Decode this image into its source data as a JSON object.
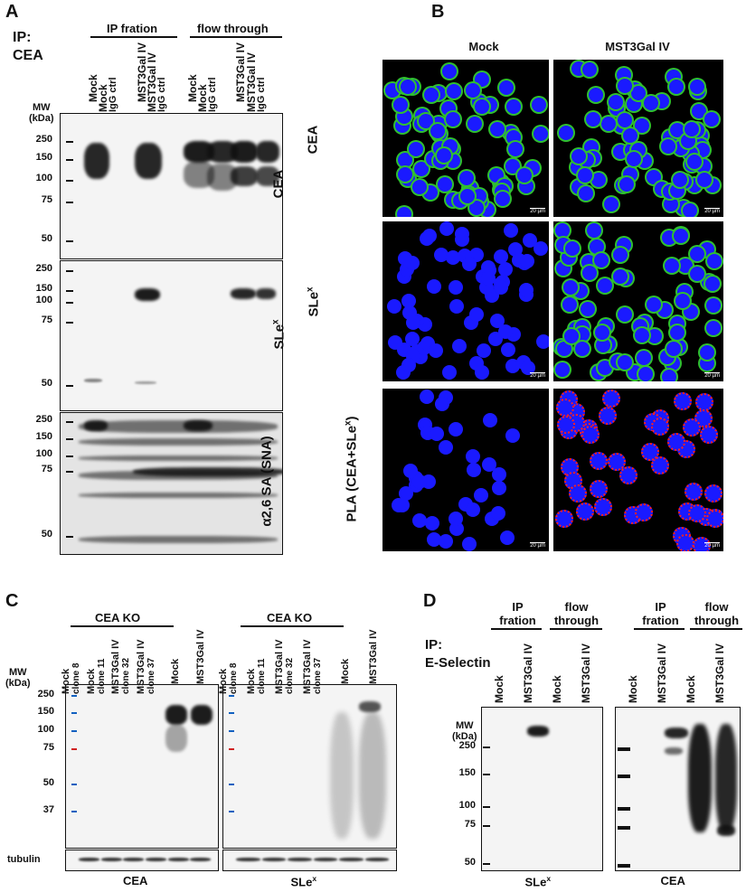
{
  "panels": {
    "A": {
      "label": "A",
      "ip_label": "IP:",
      "ip_target": "CEA",
      "group1": "IP fration",
      "group2": "flow through",
      "lanes": [
        [
          "Mock",
          ""
        ],
        [
          "Mock",
          "IgG ctrl"
        ],
        [
          "MST3Gal IV",
          ""
        ],
        [
          "MST3Gal IV",
          "IgG ctrl"
        ],
        [
          "Mock",
          ""
        ],
        [
          "Mock",
          "IgG ctrl"
        ],
        [
          "MST3Gal IV",
          ""
        ],
        [
          "MST3Gal IV",
          "IgG ctrl"
        ]
      ],
      "mw_title": "MW",
      "mw_unit": "(kDa)",
      "blots": [
        {
          "name": "CEA",
          "mw": [
            "250",
            "150",
            "100",
            "75",
            "50"
          ]
        },
        {
          "name": "SLe",
          "sup": "x",
          "mw": [
            "250",
            "150",
            "100",
            "75",
            "50"
          ]
        },
        {
          "name": "α2,6 SA (SNA)",
          "mw": [
            "250",
            "150",
            "100",
            "75",
            "50"
          ]
        }
      ]
    },
    "B": {
      "label": "B",
      "columns": [
        "Mock",
        "MST3Gal IV"
      ],
      "rows": [
        {
          "name": "CEA"
        },
        {
          "name": "SLe",
          "sup": "x"
        },
        {
          "name": "PLA (CEA+SLe",
          "sup": "x",
          "tail": ")"
        }
      ],
      "scale_bar": "20 µm",
      "colors": {
        "nuclei": "#1a1aff",
        "membrane": "#30c030",
        "pla": "#ff2020"
      }
    },
    "C": {
      "label": "C",
      "group": "CEA KO",
      "lanes": [
        [
          "Mock",
          "clone 8"
        ],
        [
          "Mock",
          "clone 11"
        ],
        [
          "MST3Gal IV",
          "clone 32"
        ],
        [
          "MST3Gal IV",
          "clone 37"
        ],
        [
          "Mock",
          ""
        ],
        [
          "MST3Gal IV",
          ""
        ]
      ],
      "mw_title": "MW",
      "mw_unit": "(kDa)",
      "mw": [
        "250",
        "150",
        "100",
        "75",
        "50",
        "37"
      ],
      "loading": "tubulin",
      "blots": [
        {
          "name": "CEA"
        },
        {
          "name": "SLe",
          "sup": "x"
        }
      ],
      "marker_colors": {
        "standard": "#1060c0",
        "ref75": "#d02020"
      }
    },
    "D": {
      "label": "D",
      "ip_label": "IP:",
      "ip_target": "E-Selectin",
      "group1": [
        "IP",
        "fration"
      ],
      "group2": [
        "flow",
        "through"
      ],
      "lanes": [
        "Mock",
        "MST3Gal IV",
        "Mock",
        "MST3Gal IV"
      ],
      "mw_title": "MW",
      "mw_unit": "(kDa)",
      "mw": [
        "250",
        "150",
        "100",
        "75",
        "50"
      ],
      "blots": [
        {
          "name": "SLe",
          "sup": "x"
        },
        {
          "name": "CEA"
        }
      ]
    }
  }
}
